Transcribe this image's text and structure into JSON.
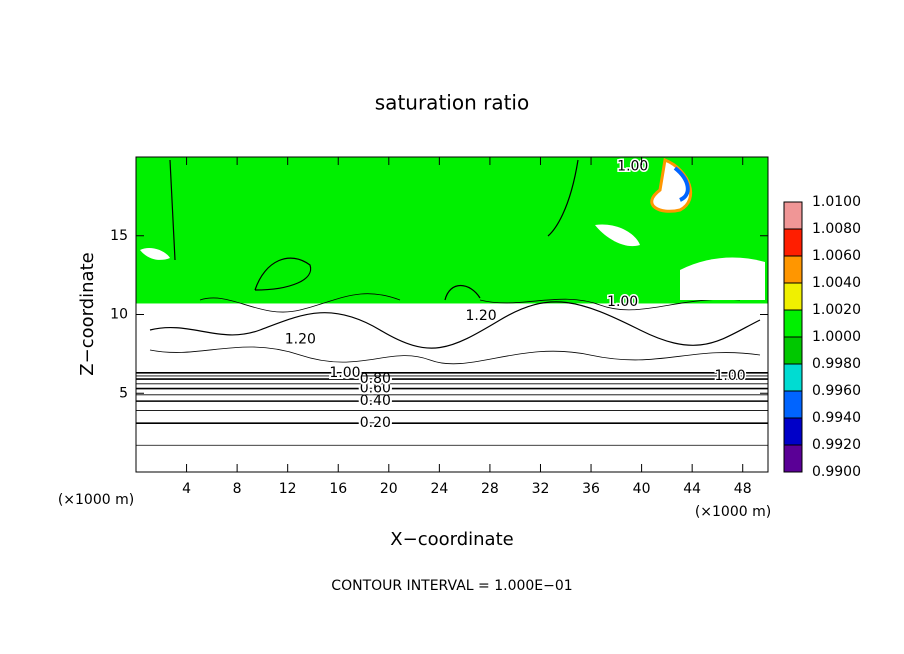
{
  "chart_data": {
    "type": "contour",
    "title": "saturation ratio",
    "x_label": "X−coordinate",
    "y_label": "Z−coordinate",
    "x_unit": "(×1000 m)",
    "y_unit": "(×1000 m)",
    "footer": "CONTOUR INTERVAL = 1.000E−01",
    "xlim": [
      0,
      50
    ],
    "ylim": [
      0,
      20
    ],
    "xticks": [
      4,
      8,
      12,
      16,
      20,
      24,
      28,
      32,
      36,
      40,
      44,
      48
    ],
    "yticks": [
      5,
      10,
      15
    ],
    "bands": [
      {
        "zlim": [
          10.7,
          20
        ],
        "value": 1.001
      }
    ],
    "contours": [
      {
        "level": 0.1,
        "z": 1.7
      },
      {
        "level": 0.2,
        "z": 3.1,
        "label": "0.20",
        "label_x": 17.7
      },
      {
        "level": 0.3,
        "z": 3.9
      },
      {
        "level": 0.4,
        "z": 4.5,
        "label": "0.40",
        "label_x": 17.7
      },
      {
        "level": 0.5,
        "z": 4.9
      },
      {
        "level": 0.6,
        "z": 5.3,
        "label": "0.60",
        "label_x": 17.7
      },
      {
        "level": 0.7,
        "z": 5.6
      },
      {
        "level": 0.8,
        "z": 5.9,
        "label": "0.80",
        "label_x": 17.7
      },
      {
        "level": 0.9,
        "z": 6.1
      },
      {
        "level": 1.0,
        "z": 6.3,
        "label": "1.00",
        "label_x": 15.3
      }
    ],
    "annotations": [
      {
        "text": "1.00",
        "x": 39.3,
        "z": 19.4
      },
      {
        "text": "1.00",
        "x": 38.5,
        "z": 10.8
      },
      {
        "text": "1.00",
        "x": 47.0,
        "z": 6.1
      },
      {
        "text": "1.20",
        "x": 27.3,
        "z": 9.9
      },
      {
        "text": "1.20",
        "x": 13.0,
        "z": 8.4
      }
    ],
    "colorbar": {
      "ticks": [
        {
          "value": 0.99,
          "label": "0.9900"
        },
        {
          "value": 0.992,
          "label": "0.9920"
        },
        {
          "value": 0.994,
          "label": "0.9940"
        },
        {
          "value": 0.996,
          "label": "0.9960"
        },
        {
          "value": 0.998,
          "label": "0.9980"
        },
        {
          "value": 1.0,
          "label": "1.0000"
        },
        {
          "value": 1.002,
          "label": "1.0020"
        },
        {
          "value": 1.004,
          "label": "1.0040"
        },
        {
          "value": 1.006,
          "label": "1.0060"
        },
        {
          "value": 1.008,
          "label": "1.0080"
        },
        {
          "value": 1.01,
          "label": "1.0100"
        }
      ],
      "colors": [
        "#5a0096",
        "#0000c8",
        "#0064ff",
        "#00dcd2",
        "#00c800",
        "#00f000",
        "#f0f000",
        "#ff9600",
        "#ff1e00",
        "#f09696"
      ]
    }
  }
}
